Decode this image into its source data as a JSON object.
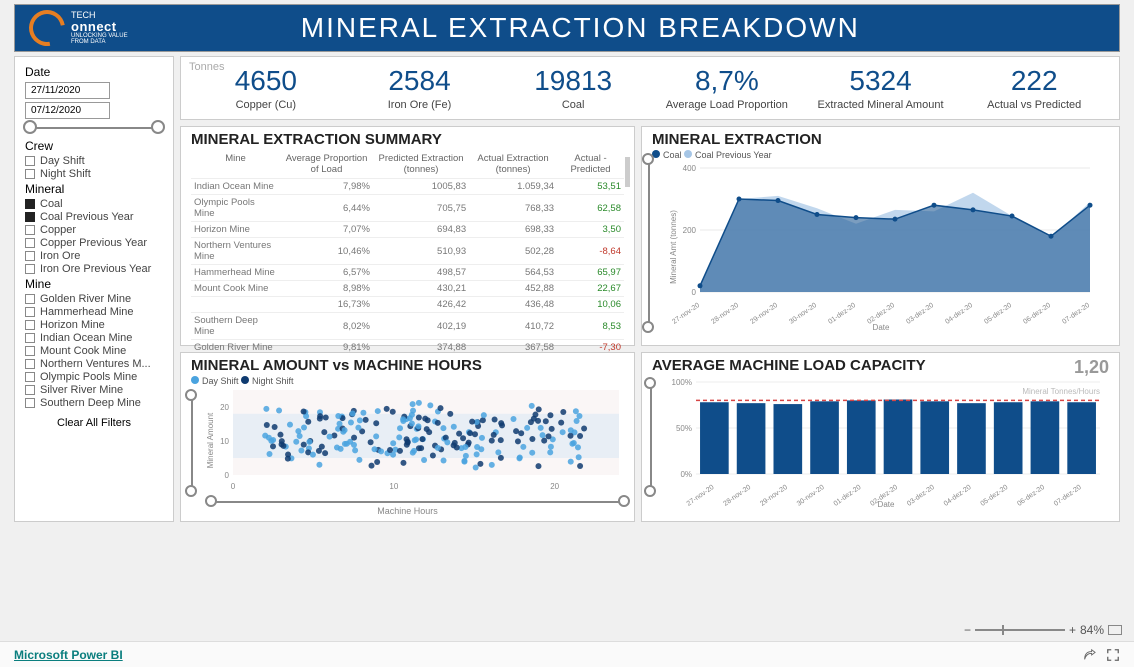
{
  "header": {
    "logo_small": "TECH",
    "logo_big": "onnect",
    "tagline1": "UNLOCKING VALUE",
    "tagline2": "FROM DATA",
    "title": "MINERAL EXTRACTION BREAKDOWN"
  },
  "colors": {
    "brand_blue": "#0f4d8a",
    "brand_orange": "#e67e22",
    "coal": "#0f4d8a",
    "coal_prev": "#a6c6e6",
    "day_shift": "#4aa3df",
    "night_shift": "#0f3b70",
    "pos": "#2a8a2a",
    "neg": "#c0392b",
    "grid": "#e0e0e0"
  },
  "filters": {
    "date": {
      "title": "Date",
      "from": "27/11/2020",
      "to": "07/12/2020"
    },
    "crew": {
      "title": "Crew",
      "items": [
        {
          "label": "Day Shift",
          "checked": false
        },
        {
          "label": "Night Shift",
          "checked": false
        }
      ]
    },
    "mineral": {
      "title": "Mineral",
      "items": [
        {
          "label": "Coal",
          "checked": true
        },
        {
          "label": "Coal Previous Year",
          "checked": true
        },
        {
          "label": "Copper",
          "checked": false
        },
        {
          "label": "Copper Previous Year",
          "checked": false
        },
        {
          "label": "Iron Ore",
          "checked": false
        },
        {
          "label": "Iron Ore Previous Year",
          "checked": false
        }
      ]
    },
    "mine": {
      "title": "Mine",
      "items": [
        {
          "label": "Golden River Mine"
        },
        {
          "label": "Hammerhead Mine"
        },
        {
          "label": "Horizon Mine"
        },
        {
          "label": "Indian Ocean Mine"
        },
        {
          "label": "Mount Cook Mine"
        },
        {
          "label": "Northern Ventures M..."
        },
        {
          "label": "Olympic Pools Mine"
        },
        {
          "label": "Silver River Mine"
        },
        {
          "label": "Southern Deep Mine"
        }
      ]
    },
    "clear": "Clear All Filters"
  },
  "kpis": {
    "tonnes_label": "Tonnes",
    "items": [
      {
        "value": "4650",
        "label": "Copper (Cu)",
        "color": "#0f4d8a"
      },
      {
        "value": "2584",
        "label": "Iron Ore (Fe)",
        "color": "#0f4d8a"
      },
      {
        "value": "19813",
        "label": "Coal",
        "color": "#0f4d8a"
      },
      {
        "value": "8,7%",
        "label": "Average Load Proportion",
        "color": "#0f4d8a"
      },
      {
        "value": "5324",
        "label": "Extracted Mineral Amount",
        "color": "#0f4d8a"
      },
      {
        "value": "222",
        "label": "Actual vs Predicted",
        "color": "#0f4d8a"
      }
    ]
  },
  "summary": {
    "title": "MINERAL EXTRACTION SUMMARY",
    "columns": [
      "Mine",
      "Average Proportion of Load",
      "Predicted Extraction (tonnes)",
      "Actual Extraction (tonnes)",
      "Actual - Predicted"
    ],
    "rows": [
      [
        "Indian Ocean Mine",
        "7,98%",
        "1005,83",
        "1.059,34",
        "53,51",
        "pos"
      ],
      [
        "Olympic Pools Mine",
        "6,44%",
        "705,75",
        "768,33",
        "62,58",
        "pos"
      ],
      [
        "Horizon Mine",
        "7,07%",
        "694,83",
        "698,33",
        "3,50",
        "pos"
      ],
      [
        "Northern Ventures Mine",
        "10,46%",
        "510,93",
        "502,28",
        "-8,64",
        "neg"
      ],
      [
        "Hammerhead Mine",
        "6,57%",
        "498,57",
        "564,53",
        "65,97",
        "pos"
      ],
      [
        "Mount Cook Mine",
        "8,98%",
        "430,21",
        "452,88",
        "22,67",
        "pos"
      ],
      [
        "",
        "16,73%",
        "426,42",
        "436,48",
        "10,06",
        "pos"
      ],
      [
        "Southern Deep Mine",
        "8,02%",
        "402,19",
        "410,72",
        "8,53",
        "pos"
      ],
      [
        "Golden River Mine",
        "9,81%",
        "374,88",
        "367,58",
        "-7,30",
        "neg"
      ]
    ]
  },
  "extraction_chart": {
    "title": "MINERAL EXTRACTION",
    "legend": [
      {
        "label": "Coal",
        "color": "#0f4d8a"
      },
      {
        "label": "Coal Previous Year",
        "color": "#a6c6e6"
      }
    ],
    "ylabel": "Mineral Amt (tonnes)",
    "xlabel": "Date",
    "ylim": [
      0,
      400
    ],
    "yticks": [
      0,
      200,
      400
    ],
    "dates": [
      "27-nov-20",
      "28-nov-20",
      "29-nov-20",
      "30-nov-20",
      "01-dez-20",
      "02-dez-20",
      "03-dez-20",
      "04-dez-20",
      "05-dez-20",
      "06-dez-20",
      "07-dez-20"
    ],
    "coal": [
      20,
      300,
      295,
      250,
      240,
      235,
      280,
      265,
      245,
      180,
      280
    ],
    "coal_prev": [
      20,
      300,
      310,
      270,
      220,
      265,
      260,
      320,
      245,
      175,
      290
    ]
  },
  "scatter_chart": {
    "title": "MINERAL AMOUNT vs MACHINE HOURS",
    "legend": [
      {
        "label": "Day Shift",
        "color": "#4aa3df"
      },
      {
        "label": "Night Shift",
        "color": "#0f3b70"
      }
    ],
    "xlabel": "Machine Hours",
    "ylabel": "Mineral Amount",
    "xlim": [
      0,
      24
    ],
    "xticks": [
      0,
      10,
      20
    ],
    "ylim": [
      0,
      25
    ],
    "yticks": [
      0,
      10,
      20
    ]
  },
  "capacity_chart": {
    "title": "AVERAGE MACHINE LOAD CAPACITY",
    "annotation": "1,20",
    "annotation_sub": "Mineral Tonnes/Hours",
    "ylabel_pct": [
      "0%",
      "50%",
      "100%"
    ],
    "xlabel": "Date",
    "dates": [
      "27-nov-20",
      "28-nov-20",
      "29-nov-20",
      "30-nov-20",
      "01-dez-20",
      "02-dez-20",
      "03-dez-20",
      "04-dez-20",
      "05-dez-20",
      "06-dez-20",
      "07-dez-20"
    ],
    "values": [
      78,
      77,
      76,
      79,
      80,
      81,
      79,
      77,
      78,
      79,
      78
    ],
    "target_line": 80,
    "bar_color": "#0f4d8a"
  },
  "footer": {
    "powerbi": "Microsoft Power BI",
    "zoom": "84%"
  }
}
